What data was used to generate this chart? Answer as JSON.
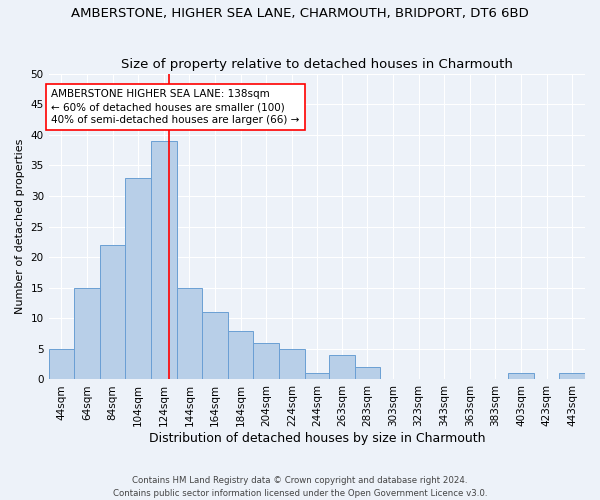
{
  "title": "AMBERSTONE, HIGHER SEA LANE, CHARMOUTH, BRIDPORT, DT6 6BD",
  "subtitle": "Size of property relative to detached houses in Charmouth",
  "xlabel": "Distribution of detached houses by size in Charmouth",
  "ylabel": "Number of detached properties",
  "bar_left_edges": [
    44,
    64,
    84,
    104,
    124,
    144,
    164,
    184,
    204,
    224,
    244,
    263,
    283,
    303,
    323,
    343,
    363,
    383,
    403,
    423,
    443
  ],
  "bar_heights": [
    5,
    15,
    22,
    33,
    39,
    15,
    11,
    8,
    6,
    5,
    1,
    4,
    2,
    0,
    0,
    0,
    0,
    0,
    1,
    0,
    1
  ],
  "bar_color": "#b8cfe8",
  "bar_edge_color": "#6a9fd4",
  "bar_edge_width": 0.7,
  "ylim": [
    0,
    50
  ],
  "yticks": [
    0,
    5,
    10,
    15,
    20,
    25,
    30,
    35,
    40,
    45,
    50
  ],
  "x_tick_labels": [
    "44sqm",
    "64sqm",
    "84sqm",
    "104sqm",
    "124sqm",
    "144sqm",
    "164sqm",
    "184sqm",
    "204sqm",
    "224sqm",
    "244sqm",
    "263sqm",
    "283sqm",
    "303sqm",
    "323sqm",
    "343sqm",
    "363sqm",
    "383sqm",
    "403sqm",
    "423sqm",
    "443sqm"
  ],
  "red_line_x": 138,
  "annotation_line1": "AMBERSTONE HIGHER SEA LANE: 138sqm",
  "annotation_line2": "← 60% of detached houses are smaller (100)",
  "annotation_line3": "40% of semi-detached houses are larger (66) →",
  "footer_line1": "Contains HM Land Registry data © Crown copyright and database right 2024.",
  "footer_line2": "Contains public sector information licensed under the Open Government Licence v3.0.",
  "bg_color": "#edf2f9",
  "grid_color": "#ffffff",
  "title_fontsize": 9.5,
  "subtitle_fontsize": 9.5,
  "ylabel_fontsize": 8,
  "xlabel_fontsize": 9,
  "tick_fontsize": 7.5
}
